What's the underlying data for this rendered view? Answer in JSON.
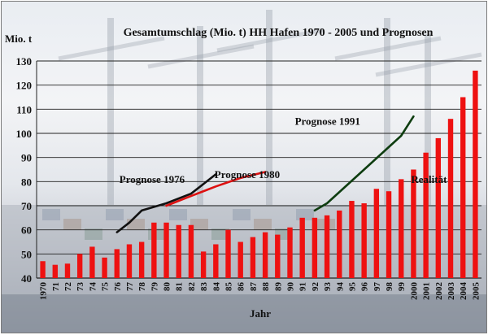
{
  "chart_data": {
    "type": "bar",
    "title": "Gesamtumschlag (Mio. t) HH Hafen 1970 - 2005 und Prognosen",
    "ylabel": "Mio. t",
    "xlabel": "Jahr",
    "ylim": [
      40,
      130
    ],
    "yticks": [
      40,
      50,
      60,
      70,
      80,
      90,
      100,
      110,
      120,
      130
    ],
    "grid": true,
    "bar_color": "#ee1111",
    "categories": [
      "1970",
      "71",
      "72",
      "73",
      "74",
      "75",
      "76",
      "77",
      "78",
      "79",
      "80",
      "81",
      "82",
      "83",
      "84",
      "85",
      "86",
      "87",
      "88",
      "89",
      "90",
      "91",
      "92",
      "93",
      "94",
      "95",
      "96",
      "97",
      "98",
      "99",
      "2000",
      "2001",
      "2002",
      "2003",
      "2004",
      "2005"
    ],
    "series": [
      {
        "values": [
          47,
          45.5,
          46,
          50,
          53,
          48.5,
          52,
          54,
          55,
          63,
          63,
          62,
          62,
          51,
          54,
          60,
          55,
          57,
          59,
          58,
          61,
          65,
          65,
          66,
          68,
          72,
          71,
          77,
          76,
          81,
          85,
          92,
          98,
          106,
          115,
          126
        ]
      }
    ],
    "forecasts": [
      {
        "name": "Prognose 1976",
        "color": "#111111",
        "points": [
          [
            1976,
            59
          ],
          [
            1977,
            63
          ],
          [
            1978,
            68
          ],
          [
            1980,
            71
          ],
          [
            1982,
            75
          ],
          [
            1984,
            83
          ]
        ],
        "label_at": 1976.2,
        "label_value": 79.5
      },
      {
        "name": "Prognose 1980",
        "color": "#dd1111",
        "points": [
          [
            1980,
            70
          ],
          [
            1982,
            74
          ],
          [
            1984,
            78
          ],
          [
            1986,
            81.5
          ],
          [
            1988,
            84
          ]
        ],
        "label_at": 1983.9,
        "label_value": 81.5
      },
      {
        "name": "Prognose 1991",
        "color": "#0e3d10",
        "points": [
          [
            1992,
            68
          ],
          [
            1993,
            71
          ],
          [
            1996,
            85
          ],
          [
            1999,
            99
          ],
          [
            2000,
            107
          ]
        ],
        "label_at": 1990.4,
        "label_value": 103.5
      }
    ],
    "annotation": {
      "text": "Realität",
      "at": 1999.8,
      "value": 79.5
    }
  }
}
